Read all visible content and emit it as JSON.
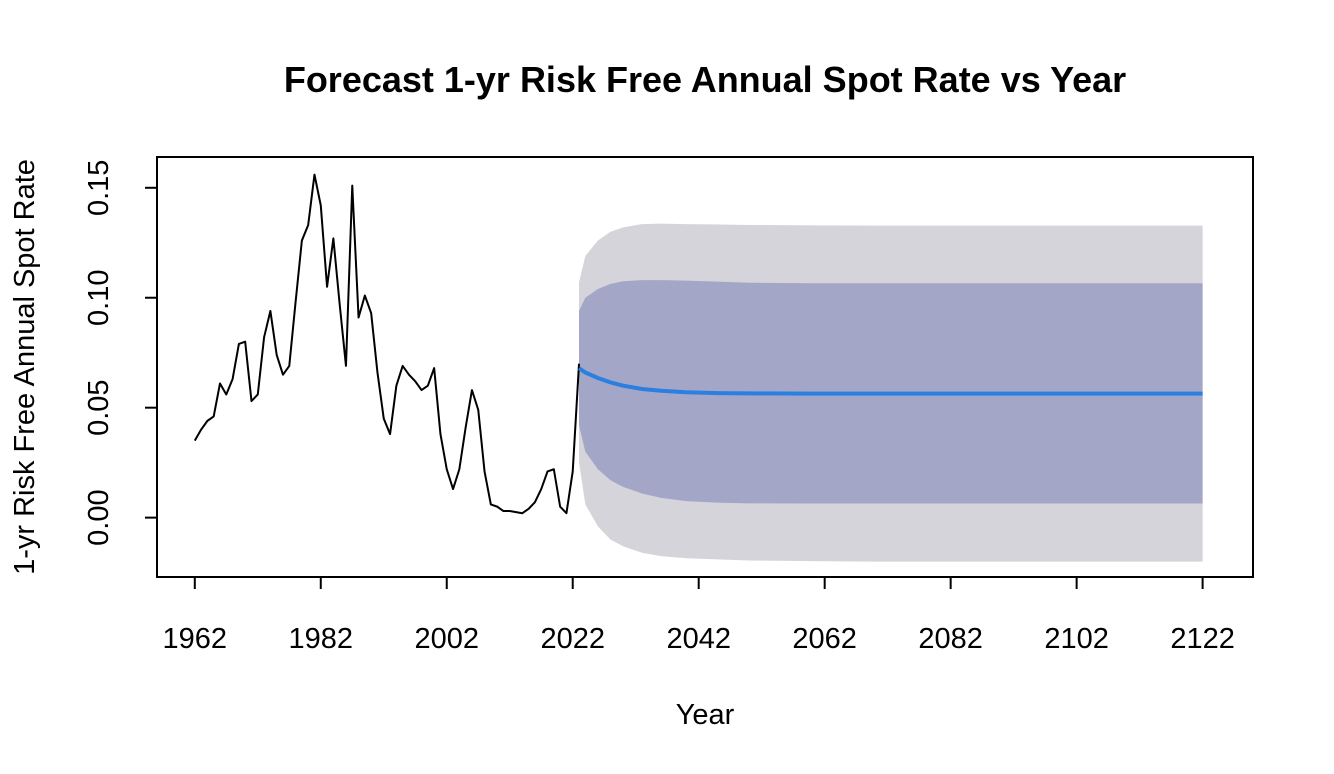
{
  "chart_data": {
    "type": "line",
    "title": "Forecast 1-yr Risk Free Annual Spot Rate vs Year",
    "xlabel": "Year",
    "ylabel": "1-yr Risk Free Annual Spot Rate",
    "xlim": [
      1956,
      2130
    ],
    "ylim": [
      -0.027,
      0.164
    ],
    "x_ticks": [
      1962,
      1982,
      2002,
      2022,
      2042,
      2062,
      2082,
      2102,
      2122
    ],
    "y_ticks": [
      0.0,
      0.05,
      0.1,
      0.15
    ],
    "y_tick_labels": [
      "0.00",
      "0.05",
      "0.10",
      "0.15"
    ],
    "grid": false,
    "colors": {
      "history": "#000000",
      "forecast_mean": "#2b7fe0",
      "band_95": "#d4d4da",
      "band_80": "#a3a6c6"
    },
    "history": {
      "x": [
        1962,
        1963,
        1964,
        1965,
        1966,
        1967,
        1968,
        1969,
        1970,
        1971,
        1972,
        1973,
        1974,
        1975,
        1976,
        1977,
        1978,
        1979,
        1980,
        1981,
        1982,
        1983,
        1984,
        1985,
        1986,
        1987,
        1988,
        1989,
        1990,
        1991,
        1992,
        1993,
        1994,
        1995,
        1996,
        1997,
        1998,
        1999,
        2000,
        2001,
        2002,
        2003,
        2004,
        2005,
        2006,
        2007,
        2008,
        2009,
        2010,
        2011,
        2012,
        2013,
        2014,
        2015,
        2016,
        2017,
        2018,
        2019,
        2020,
        2021,
        2022,
        2023
      ],
      "y": [
        0.035,
        0.04,
        0.044,
        0.046,
        0.061,
        0.056,
        0.063,
        0.079,
        0.08,
        0.053,
        0.056,
        0.082,
        0.094,
        0.074,
        0.065,
        0.069,
        0.098,
        0.126,
        0.133,
        0.156,
        0.142,
        0.105,
        0.127,
        0.097,
        0.069,
        0.151,
        0.091,
        0.101,
        0.093,
        0.066,
        0.045,
        0.038,
        0.06,
        0.069,
        0.065,
        0.062,
        0.058,
        0.06,
        0.068,
        0.038,
        0.022,
        0.013,
        0.022,
        0.041,
        0.058,
        0.049,
        0.021,
        0.006,
        0.005,
        0.003,
        0.003,
        0.0025,
        0.002,
        0.004,
        0.007,
        0.013,
        0.021,
        0.022,
        0.005,
        0.002,
        0.021,
        0.07
      ]
    },
    "series": [
      {
        "role": "forecast",
        "x": [
          2023,
          2024,
          2026,
          2028,
          2030,
          2033,
          2036,
          2040,
          2045,
          2050,
          2060,
          2070,
          2090,
          2110,
          2122
        ],
        "mean": [
          0.068,
          0.066,
          0.0635,
          0.0615,
          0.06,
          0.0585,
          0.0577,
          0.057,
          0.0566,
          0.0565,
          0.0564,
          0.0564,
          0.0564,
          0.0564,
          0.0564
        ],
        "lo80": [
          0.042,
          0.03,
          0.022,
          0.017,
          0.014,
          0.011,
          0.009,
          0.0075,
          0.0068,
          0.0065,
          0.0064,
          0.0064,
          0.0064,
          0.0064,
          0.0064
        ],
        "hi80": [
          0.094,
          0.1,
          0.104,
          0.1063,
          0.1075,
          0.108,
          0.108,
          0.1078,
          0.1073,
          0.1068,
          0.1066,
          0.1066,
          0.1066,
          0.1066,
          0.1066
        ],
        "lo95": [
          0.025,
          0.006,
          -0.004,
          -0.01,
          -0.013,
          -0.016,
          -0.0175,
          -0.0185,
          -0.019,
          -0.0195,
          -0.0198,
          -0.02,
          -0.02,
          -0.02,
          -0.02
        ],
        "hi95": [
          0.107,
          0.119,
          0.126,
          0.13,
          0.132,
          0.1335,
          0.1337,
          0.1335,
          0.1333,
          0.1331,
          0.1329,
          0.1328,
          0.1328,
          0.1328,
          0.1328
        ]
      }
    ]
  }
}
